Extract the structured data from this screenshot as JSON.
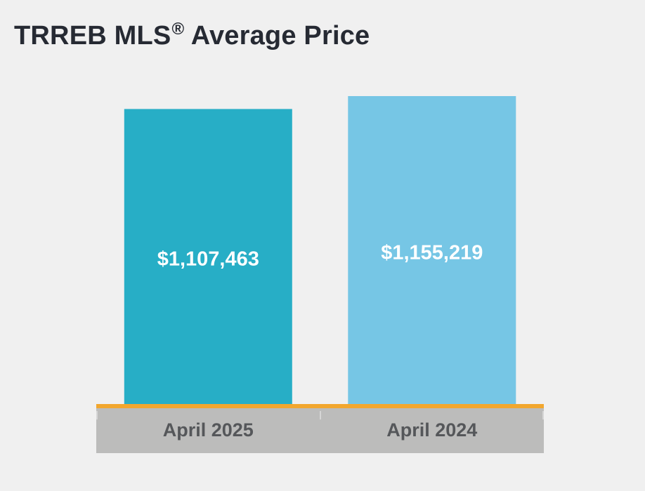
{
  "title": {
    "main": "TRREB MLS",
    "sup": "®",
    "rest": " Average Price"
  },
  "colors": {
    "background": "#f0f0f0",
    "title": "#262a33",
    "axis_line": "#f2a72e",
    "category_band": "#bcbcbb",
    "category_text": "#55575a",
    "value_text": "#ffffff"
  },
  "chart_data": {
    "type": "bar",
    "title": "TRREB MLS® Average Price",
    "categories": [
      "April 2025",
      "April 2024"
    ],
    "values": [
      1107463,
      1155219
    ],
    "value_labels": [
      "$1,107,463",
      "$1,155,219"
    ],
    "bar_colors": [
      "#27aec6",
      "#76c6e5"
    ],
    "xlabel": "",
    "ylabel": "",
    "grid": false,
    "legend": "none"
  }
}
